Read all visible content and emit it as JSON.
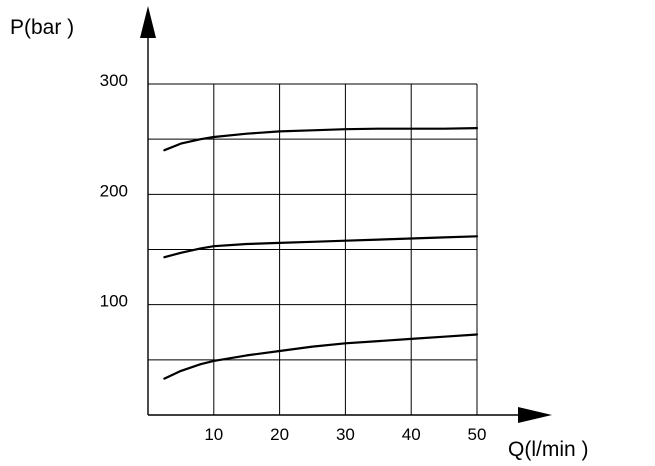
{
  "chart_data": {
    "type": "line",
    "title": "",
    "ylabel": "P(bar )",
    "xlabel": "Q(l/min )",
    "xlim": [
      0,
      50
    ],
    "ylim": [
      0,
      300
    ],
    "grid": true,
    "x_ticks": [
      10,
      20,
      30,
      40,
      50
    ],
    "y_ticks": [
      100,
      200,
      300
    ],
    "x_tick_labels": [
      "10",
      "20",
      "30",
      "40",
      "50"
    ],
    "y_tick_labels": [
      "100",
      "200",
      "300"
    ],
    "series": [
      {
        "x": [
          2.5,
          5,
          8,
          10,
          15,
          20,
          25,
          30,
          35,
          40,
          45,
          50
        ],
        "y": [
          240,
          246,
          250,
          252,
          255,
          257,
          258,
          259,
          259.5,
          259.5,
          259.5,
          260
        ]
      },
      {
        "x": [
          2.5,
          5,
          8,
          10,
          15,
          20,
          25,
          30,
          35,
          40,
          45,
          50
        ],
        "y": [
          143,
          147,
          151,
          153,
          155,
          156,
          157,
          158,
          159,
          160,
          161,
          162
        ]
      },
      {
        "x": [
          2.5,
          5,
          8,
          10,
          15,
          20,
          25,
          30,
          35,
          40,
          45,
          50
        ],
        "y": [
          33,
          40,
          46,
          49,
          54,
          58,
          62,
          65,
          67,
          69,
          71,
          73
        ]
      }
    ],
    "colors": {
      "line": "#000000",
      "grid": "#000000",
      "axis": "#000000"
    }
  }
}
